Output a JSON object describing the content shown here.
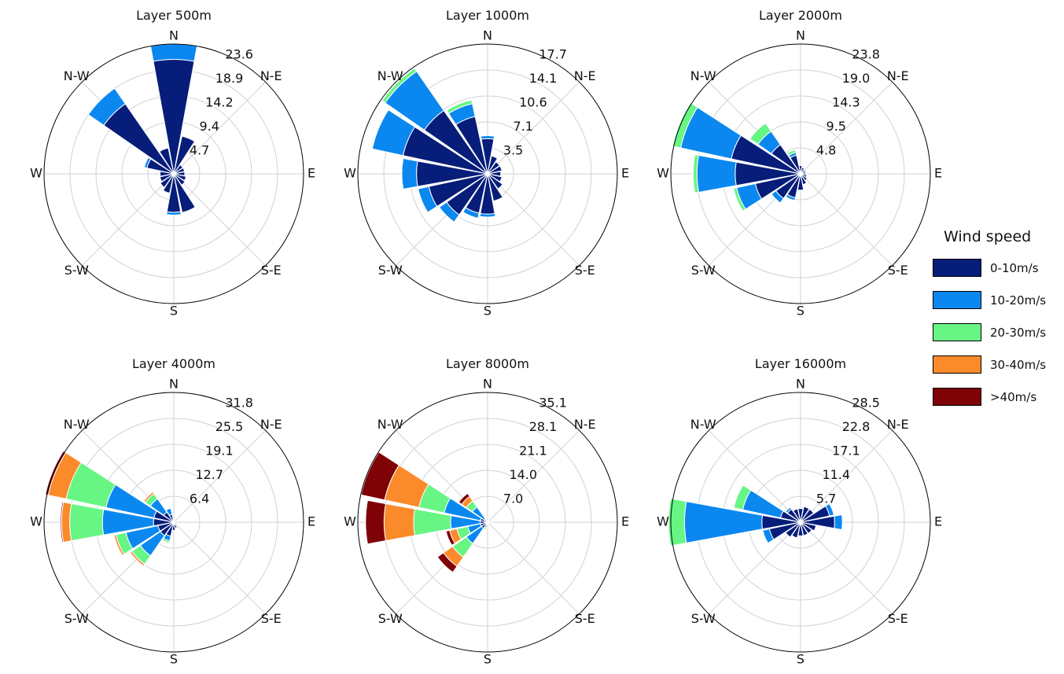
{
  "legend": {
    "title": "Wind speed",
    "items": [
      {
        "label": "0-10m/s",
        "color": "#071d7a"
      },
      {
        "label": "10-20m/s",
        "color": "#0a88f0"
      },
      {
        "label": "20-30m/s",
        "color": "#67f584"
      },
      {
        "label": "30-40m/s",
        "color": "#fb8a2a"
      },
      {
        "label": ">40m/s",
        "color": "#7e0206"
      }
    ]
  },
  "chart_data": [
    {
      "type": "windrose",
      "title": "Layer 500m",
      "directions": [
        "N",
        "N-E",
        "E",
        "S-E",
        "S",
        "S-W",
        "W",
        "N-W"
      ],
      "radial_ticks": [
        "4.7",
        "9.4",
        "14.2",
        "18.9",
        "23.6"
      ],
      "rmax": 23.6,
      "bins": [
        "0-10m/s",
        "10-20m/s",
        "20-30m/s",
        "30-40m/s",
        ">40m/s"
      ],
      "sectors": [
        {
          "dir": 0,
          "values": [
            20.8,
            2.8,
            0,
            0,
            0
          ]
        },
        {
          "dir": 22.5,
          "values": [
            7.0,
            0,
            0,
            0,
            0
          ]
        },
        {
          "dir": 45,
          "values": [
            2.0,
            0,
            0,
            0,
            0
          ]
        },
        {
          "dir": 67.5,
          "values": [
            2.0,
            0,
            0,
            0,
            0
          ]
        },
        {
          "dir": 90,
          "values": [
            2.0,
            0,
            0,
            0,
            0
          ]
        },
        {
          "dir": 112.5,
          "values": [
            2.3,
            0,
            0,
            0,
            0
          ]
        },
        {
          "dir": 135,
          "values": [
            2.5,
            0,
            0,
            0,
            0
          ]
        },
        {
          "dir": 157.5,
          "values": [
            7.2,
            0,
            0,
            0,
            0
          ]
        },
        {
          "dir": 180,
          "values": [
            7.0,
            0.5,
            0,
            0,
            0
          ]
        },
        {
          "dir": 202.5,
          "values": [
            3.6,
            0,
            0,
            0,
            0
          ]
        },
        {
          "dir": 225,
          "values": [
            3.0,
            0,
            0,
            0,
            0
          ]
        },
        {
          "dir": 247.5,
          "values": [
            2.6,
            0,
            0,
            0,
            0
          ]
        },
        {
          "dir": 270,
          "values": [
            2.5,
            0,
            0,
            0,
            0
          ]
        },
        {
          "dir": 292.5,
          "values": [
            5.0,
            0.5,
            0,
            0,
            0
          ]
        },
        {
          "dir": 315,
          "values": [
            15.5,
            3.4,
            0,
            0,
            0
          ]
        },
        {
          "dir": 337.5,
          "values": [
            4.8,
            0,
            0,
            0,
            0
          ]
        }
      ]
    },
    {
      "type": "windrose",
      "title": "Layer 1000m",
      "directions": [
        "N",
        "N-E",
        "E",
        "S-E",
        "S",
        "S-W",
        "W",
        "N-W"
      ],
      "radial_ticks": [
        "3.5",
        "7.1",
        "10.6",
        "14.1",
        "17.7"
      ],
      "rmax": 17.7,
      "bins": [
        "0-10m/s",
        "10-20m/s",
        "20-30m/s",
        "30-40m/s",
        ">40m/s"
      ],
      "sectors": [
        {
          "dir": 0,
          "values": [
            4.8,
            0.4,
            0,
            0,
            0
          ]
        },
        {
          "dir": 22.5,
          "values": [
            2.5,
            0,
            0,
            0,
            0
          ]
        },
        {
          "dir": 45,
          "values": [
            2.0,
            0,
            0,
            0,
            0
          ]
        },
        {
          "dir": 67.5,
          "values": [
            2.0,
            0,
            0,
            0,
            0
          ]
        },
        {
          "dir": 90,
          "values": [
            1.8,
            0,
            0,
            0,
            0
          ]
        },
        {
          "dir": 112.5,
          "values": [
            2.0,
            0,
            0,
            0,
            0
          ]
        },
        {
          "dir": 135,
          "values": [
            2.5,
            0,
            0,
            0,
            0
          ]
        },
        {
          "dir": 157.5,
          "values": [
            3.8,
            0,
            0,
            0,
            0
          ]
        },
        {
          "dir": 180,
          "values": [
            5.5,
            0.4,
            0,
            0,
            0
          ]
        },
        {
          "dir": 202.5,
          "values": [
            5.5,
            0.7,
            0,
            0,
            0
          ]
        },
        {
          "dir": 225,
          "values": [
            6.8,
            1.2,
            0,
            0,
            0
          ]
        },
        {
          "dir": 247.5,
          "values": [
            8.2,
            1.5,
            0,
            0,
            0
          ]
        },
        {
          "dir": 270,
          "values": [
            9.7,
            2.0,
            0,
            0,
            0
          ]
        },
        {
          "dir": 292.5,
          "values": [
            11.8,
            4.3,
            0,
            0,
            0
          ]
        },
        {
          "dir": 315,
          "values": [
            10.5,
            6.5,
            0.5,
            0,
            0
          ]
        },
        {
          "dir": 337.5,
          "values": [
            8.0,
            1.8,
            0.5,
            0,
            0
          ]
        }
      ]
    },
    {
      "type": "windrose",
      "title": "Layer 2000m",
      "directions": [
        "N",
        "N-E",
        "E",
        "S-E",
        "S",
        "S-W",
        "W",
        "N-W"
      ],
      "radial_ticks": [
        "4.8",
        "9.5",
        "14.3",
        "19.0",
        "23.8"
      ],
      "rmax": 23.8,
      "bins": [
        "0-10m/s",
        "10-20m/s",
        "20-30m/s",
        "30-40m/s",
        ">40m/s"
      ],
      "sectors": [
        {
          "dir": 0,
          "values": [
            1.5,
            0,
            0,
            0,
            0
          ]
        },
        {
          "dir": 22.5,
          "values": [
            1.2,
            0,
            0,
            0,
            0
          ]
        },
        {
          "dir": 45,
          "values": [
            1.0,
            0,
            0,
            0,
            0
          ]
        },
        {
          "dir": 67.5,
          "values": [
            1.0,
            0,
            0,
            0,
            0
          ]
        },
        {
          "dir": 90,
          "values": [
            1.0,
            0,
            0,
            0,
            0
          ]
        },
        {
          "dir": 112.5,
          "values": [
            1.2,
            0,
            0,
            0,
            0
          ]
        },
        {
          "dir": 135,
          "values": [
            1.5,
            0,
            0,
            0,
            0
          ]
        },
        {
          "dir": 157.5,
          "values": [
            2.0,
            0,
            0,
            0,
            0
          ]
        },
        {
          "dir": 180,
          "values": [
            3.0,
            0,
            0,
            0,
            0
          ]
        },
        {
          "dir": 202.5,
          "values": [
            4.5,
            0.5,
            0,
            0,
            0
          ]
        },
        {
          "dir": 225,
          "values": [
            5.5,
            1.0,
            0,
            0,
            0
          ]
        },
        {
          "dir": 247.5,
          "values": [
            8.5,
            3.5,
            0.6,
            0,
            0
          ]
        },
        {
          "dir": 270,
          "values": [
            12.0,
            7.0,
            0.7,
            0,
            0
          ]
        },
        {
          "dir": 292.5,
          "values": [
            13.0,
            9.5,
            1.5,
            0,
            0
          ]
        },
        {
          "dir": 315,
          "values": [
            6.5,
            3.0,
            1.8,
            0,
            0
          ]
        },
        {
          "dir": 337.5,
          "values": [
            3.5,
            0.5,
            0.5,
            0,
            0
          ]
        }
      ]
    },
    {
      "type": "windrose",
      "title": "Layer 4000m",
      "directions": [
        "N",
        "N-E",
        "E",
        "S-E",
        "S",
        "S-W",
        "W",
        "N-W"
      ],
      "radial_ticks": [
        "6.4",
        "12.7",
        "19.1",
        "25.5",
        "31.8"
      ],
      "rmax": 31.8,
      "bins": [
        "0-10m/s",
        "10-20m/s",
        "20-30m/s",
        "30-40m/s",
        ">40m/s"
      ],
      "sectors": [
        {
          "dir": 0,
          "values": [
            0.8,
            0,
            0,
            0,
            0
          ]
        },
        {
          "dir": 22.5,
          "values": [
            0.8,
            0,
            0,
            0,
            0
          ]
        },
        {
          "dir": 45,
          "values": [
            0.8,
            0,
            0,
            0,
            0
          ]
        },
        {
          "dir": 67.5,
          "values": [
            0.8,
            0,
            0,
            0,
            0
          ]
        },
        {
          "dir": 90,
          "values": [
            0.8,
            0,
            0,
            0,
            0
          ]
        },
        {
          "dir": 112.5,
          "values": [
            0.8,
            0,
            0,
            0,
            0
          ]
        },
        {
          "dir": 135,
          "values": [
            1.0,
            0,
            0,
            0,
            0
          ]
        },
        {
          "dir": 157.5,
          "values": [
            1.5,
            0,
            0,
            0,
            0
          ]
        },
        {
          "dir": 180,
          "values": [
            2.0,
            0,
            0,
            0,
            0
          ]
        },
        {
          "dir": 202.5,
          "values": [
            3.5,
            1.2,
            0.5,
            0,
            0
          ]
        },
        {
          "dir": 225,
          "values": [
            4.0,
            6.0,
            2.5,
            0.5,
            0
          ]
        },
        {
          "dir": 247.5,
          "values": [
            4.0,
            8.0,
            2.5,
            0.5,
            0
          ]
        },
        {
          "dir": 270,
          "values": [
            5.0,
            12.5,
            8.0,
            2.0,
            0.3
          ]
        },
        {
          "dir": 292.5,
          "values": [
            5.0,
            12.0,
            10.0,
            4.5,
            0.7
          ]
        },
        {
          "dir": 315,
          "values": [
            3.0,
            4.0,
            1.5,
            0.5,
            0
          ]
        },
        {
          "dir": 337.5,
          "values": [
            2.0,
            1.5,
            0,
            0,
            0
          ]
        }
      ]
    },
    {
      "type": "windrose",
      "title": "Layer 8000m",
      "directions": [
        "N",
        "N-E",
        "E",
        "S-E",
        "S",
        "S-W",
        "W",
        "N-W"
      ],
      "radial_ticks": [
        "7.0",
        "14.0",
        "21.1",
        "28.1",
        "35.1"
      ],
      "rmax": 35.1,
      "bins": [
        "0-10m/s",
        "10-20m/s",
        "20-30m/s",
        "30-40m/s",
        ">40m/s"
      ],
      "sectors": [
        {
          "dir": 0,
          "values": [
            0.5,
            0,
            0,
            0,
            0
          ]
        },
        {
          "dir": 22.5,
          "values": [
            0.5,
            0,
            0,
            0,
            0
          ]
        },
        {
          "dir": 45,
          "values": [
            0.5,
            0,
            0,
            0,
            0
          ]
        },
        {
          "dir": 67.5,
          "values": [
            0.5,
            0,
            0,
            0,
            0
          ]
        },
        {
          "dir": 90,
          "values": [
            0.5,
            0,
            0,
            0,
            0
          ]
        },
        {
          "dir": 112.5,
          "values": [
            0.5,
            0,
            0,
            0,
            0
          ]
        },
        {
          "dir": 135,
          "values": [
            0.5,
            0,
            0,
            0,
            0
          ]
        },
        {
          "dir": 157.5,
          "values": [
            0.5,
            0,
            0,
            0,
            0
          ]
        },
        {
          "dir": 180,
          "values": [
            0.8,
            0,
            0,
            0,
            0
          ]
        },
        {
          "dir": 202.5,
          "values": [
            1.0,
            0.5,
            0.5,
            0,
            0
          ]
        },
        {
          "dir": 225,
          "values": [
            2.0,
            5.0,
            4.5,
            3.0,
            2.0
          ]
        },
        {
          "dir": 247.5,
          "values": [
            2.0,
            3.5,
            3.0,
            2.0,
            1.0
          ]
        },
        {
          "dir": 270,
          "values": [
            2.0,
            8.0,
            10.0,
            8.0,
            5.0
          ]
        },
        {
          "dir": 292.5,
          "values": [
            2.0,
            10.0,
            7.0,
            9.5,
            6.5
          ]
        },
        {
          "dir": 315,
          "values": [
            1.0,
            4.0,
            2.0,
            1.5,
            1.0
          ]
        },
        {
          "dir": 337.5,
          "values": [
            0.5,
            0,
            0,
            0,
            0
          ]
        }
      ]
    },
    {
      "type": "windrose",
      "title": "Layer 16000m",
      "directions": [
        "N",
        "N-E",
        "E",
        "S-E",
        "S",
        "S-W",
        "W",
        "N-W"
      ],
      "radial_ticks": [
        "5.7",
        "11.4",
        "17.1",
        "22.8",
        "28.5"
      ],
      "rmax": 28.5,
      "bins": [
        "0-10m/s",
        "10-20m/s",
        "20-30m/s",
        "30-40m/s",
        ">40m/s"
      ],
      "sectors": [
        {
          "dir": 0,
          "values": [
            3.0,
            0,
            0,
            0,
            0
          ]
        },
        {
          "dir": 22.5,
          "values": [
            3.5,
            0,
            0,
            0,
            0
          ]
        },
        {
          "dir": 45,
          "values": [
            3.5,
            0,
            0,
            0,
            0
          ]
        },
        {
          "dir": 67.5,
          "values": [
            6.5,
            1.0,
            0,
            0,
            0
          ]
        },
        {
          "dir": 90,
          "values": [
            7.5,
            1.7,
            0,
            0,
            0
          ]
        },
        {
          "dir": 112.5,
          "values": [
            3.5,
            0,
            0,
            0,
            0
          ]
        },
        {
          "dir": 135,
          "values": [
            3.0,
            0,
            0,
            0,
            0
          ]
        },
        {
          "dir": 157.5,
          "values": [
            3.0,
            0,
            0,
            0,
            0
          ]
        },
        {
          "dir": 180,
          "values": [
            3.0,
            0,
            0,
            0,
            0
          ]
        },
        {
          "dir": 202.5,
          "values": [
            3.5,
            0,
            0,
            0,
            0
          ]
        },
        {
          "dir": 225,
          "values": [
            4.0,
            0,
            0,
            0,
            0
          ]
        },
        {
          "dir": 247.5,
          "values": [
            7.0,
            1.5,
            0,
            0,
            0
          ]
        },
        {
          "dir": 270,
          "values": [
            8.5,
            17.0,
            3.5,
            0,
            0
          ]
        },
        {
          "dir": 292.5,
          "values": [
            4.5,
            8.5,
            2.0,
            0,
            0
          ]
        },
        {
          "dir": 315,
          "values": [
            3.5,
            0.5,
            0,
            0,
            0
          ]
        },
        {
          "dir": 337.5,
          "values": [
            3.0,
            0,
            0,
            0,
            0
          ]
        }
      ]
    }
  ]
}
